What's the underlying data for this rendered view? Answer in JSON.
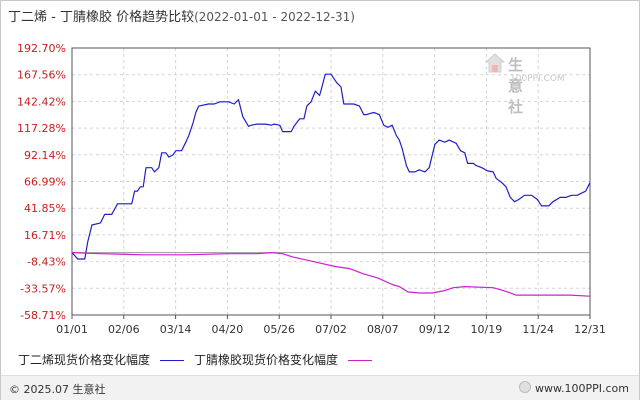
{
  "title": {
    "main": "丁二烯 - 丁腈橡胶 价格趋势比较",
    "range": "(2022-01-01 - 2022-12-31)"
  },
  "watermark": {
    "brand_cn": "生意社",
    "brand_en": "100PPI.COM",
    "icon": "house-logo-icon"
  },
  "footer": {
    "copyright": "© 2025.07 生意社",
    "site": "www.100PPI.com"
  },
  "colors": {
    "series_a": "#1f1fc8",
    "series_b": "#d21cd2",
    "tick_label": "#c81e1e",
    "grid": "#d4d4d4",
    "axis": "#555555"
  },
  "chart_data": {
    "type": "line",
    "title": "丁二烯 - 丁腈橡胶 价格趋势比较",
    "xlabel": "",
    "ylabel": "",
    "x_ticks": [
      "01/01",
      "02/06",
      "03/14",
      "04/20",
      "05/26",
      "07/02",
      "08/07",
      "09/12",
      "10/19",
      "11/24",
      "12/31"
    ],
    "y_ticks": [
      "192.70%",
      "167.56%",
      "142.42%",
      "117.28%",
      "92.14%",
      "66.99%",
      "41.85%",
      "16.71%",
      "-8.43%",
      "-33.57%",
      "-58.71%"
    ],
    "ylim": [
      -58.71,
      192.7
    ],
    "xlim": [
      0,
      364
    ],
    "grid": true,
    "legend_position": "bottom-left",
    "series": [
      {
        "name": "丁二烯现货价格变化幅度",
        "points": [
          [
            0,
            0
          ],
          [
            4,
            -6
          ],
          [
            9,
            -6
          ],
          [
            11,
            10
          ],
          [
            14,
            26
          ],
          [
            20,
            28
          ],
          [
            23,
            36
          ],
          [
            28,
            36
          ],
          [
            32,
            46
          ],
          [
            42,
            46
          ],
          [
            44,
            58
          ],
          [
            46,
            58
          ],
          [
            48,
            62
          ],
          [
            50,
            62
          ],
          [
            52,
            80
          ],
          [
            56,
            80
          ],
          [
            58,
            76
          ],
          [
            61,
            80
          ],
          [
            63,
            94
          ],
          [
            66,
            94
          ],
          [
            68,
            90
          ],
          [
            71,
            92
          ],
          [
            73,
            96
          ],
          [
            77,
            96
          ],
          [
            80,
            104
          ],
          [
            82,
            110
          ],
          [
            85,
            122
          ],
          [
            87,
            132
          ],
          [
            89,
            138
          ],
          [
            96,
            140
          ],
          [
            100,
            140
          ],
          [
            104,
            142
          ],
          [
            110,
            142
          ],
          [
            114,
            140
          ],
          [
            117,
            144
          ],
          [
            120,
            128
          ],
          [
            124,
            119
          ],
          [
            126,
            120
          ],
          [
            130,
            121
          ],
          [
            136,
            121
          ],
          [
            140,
            120
          ],
          [
            142,
            121
          ],
          [
            146,
            120
          ],
          [
            148,
            114
          ],
          [
            150,
            114
          ],
          [
            154,
            114
          ],
          [
            156,
            119
          ],
          [
            160,
            126
          ],
          [
            163,
            126
          ],
          [
            165,
            138
          ],
          [
            168,
            142
          ],
          [
            171,
            152
          ],
          [
            174,
            148
          ],
          [
            176,
            158
          ],
          [
            178,
            168
          ],
          [
            182,
            168
          ],
          [
            186,
            160
          ],
          [
            189,
            156
          ],
          [
            191,
            140
          ],
          [
            194,
            140
          ],
          [
            198,
            140
          ],
          [
            202,
            138
          ],
          [
            205,
            130
          ],
          [
            207,
            130
          ],
          [
            212,
            132
          ],
          [
            216,
            130
          ],
          [
            219,
            120
          ],
          [
            222,
            118
          ],
          [
            225,
            120
          ],
          [
            228,
            110
          ],
          [
            230,
            106
          ],
          [
            232,
            98
          ],
          [
            235,
            82
          ],
          [
            237,
            76
          ],
          [
            241,
            76
          ],
          [
            244,
            78
          ],
          [
            248,
            76
          ],
          [
            251,
            80
          ],
          [
            255,
            102
          ],
          [
            258,
            106
          ],
          [
            262,
            104
          ],
          [
            265,
            106
          ],
          [
            270,
            103
          ],
          [
            273,
            96
          ],
          [
            276,
            94
          ],
          [
            278,
            84
          ],
          [
            282,
            84
          ],
          [
            284,
            82
          ],
          [
            288,
            80
          ],
          [
            292,
            77
          ],
          [
            296,
            76
          ],
          [
            298,
            70
          ],
          [
            302,
            66
          ],
          [
            305,
            62
          ],
          [
            308,
            52
          ],
          [
            311,
            48
          ],
          [
            314,
            50
          ],
          [
            318,
            54
          ],
          [
            323,
            54
          ],
          [
            327,
            50
          ],
          [
            330,
            44
          ],
          [
            335,
            44
          ],
          [
            338,
            48
          ],
          [
            343,
            52
          ],
          [
            347,
            52
          ],
          [
            351,
            54
          ],
          [
            355,
            54
          ],
          [
            358,
            56
          ],
          [
            361,
            58
          ],
          [
            364,
            66
          ]
        ]
      },
      {
        "name": "丁腈橡胶现货价格变化幅度",
        "points": [
          [
            0,
            0
          ],
          [
            20,
            -1
          ],
          [
            50,
            -2
          ],
          [
            80,
            -2
          ],
          [
            110,
            -1
          ],
          [
            130,
            -1
          ],
          [
            140,
            0
          ],
          [
            148,
            -1
          ],
          [
            155,
            -4
          ],
          [
            165,
            -7
          ],
          [
            175,
            -10
          ],
          [
            185,
            -13
          ],
          [
            195,
            -15
          ],
          [
            205,
            -20
          ],
          [
            215,
            -24
          ],
          [
            225,
            -30
          ],
          [
            230,
            -32
          ],
          [
            236,
            -37
          ],
          [
            244,
            -38
          ],
          [
            253,
            -38
          ],
          [
            261,
            -36
          ],
          [
            268,
            -33
          ],
          [
            276,
            -32
          ],
          [
            296,
            -33
          ],
          [
            304,
            -36
          ],
          [
            312,
            -40
          ],
          [
            322,
            -40
          ],
          [
            336,
            -40
          ],
          [
            350,
            -40
          ],
          [
            364,
            -41
          ]
        ]
      }
    ]
  }
}
